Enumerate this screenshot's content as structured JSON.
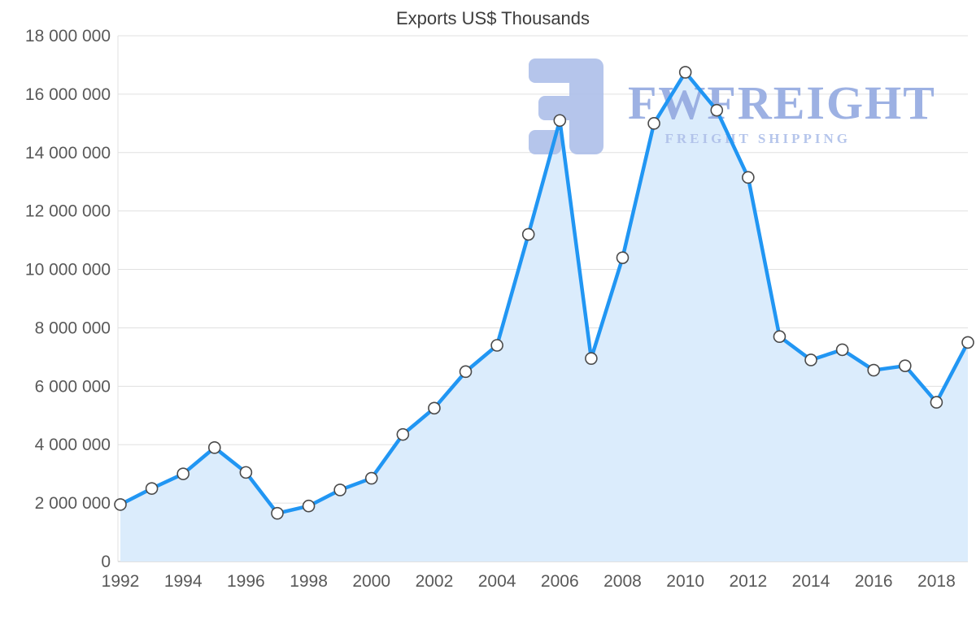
{
  "chart_data": {
    "type": "area",
    "title": "Exports US$ Thousands",
    "x": [
      1992,
      1993,
      1994,
      1995,
      1996,
      1997,
      1998,
      1999,
      2000,
      2001,
      2002,
      2003,
      2004,
      2005,
      2006,
      2007,
      2008,
      2009,
      2010,
      2011,
      2012,
      2013,
      2014,
      2015,
      2016,
      2017,
      2018,
      2019
    ],
    "values": [
      1950000,
      2500000,
      3000000,
      3900000,
      3050000,
      1650000,
      1900000,
      2450000,
      2850000,
      4350000,
      5250000,
      6500000,
      7400000,
      11200000,
      15100000,
      6950000,
      10400000,
      15000000,
      16750000,
      15450000,
      13150000,
      7700000,
      6900000,
      7250000,
      6550000,
      6700000,
      5450000,
      7500000
    ],
    "xlabel": "",
    "ylabel": "",
    "ylim": [
      0,
      18000000
    ],
    "ytick_step": 2000000,
    "ytick_labels": [
      "0",
      "2 000 000",
      "4 000 000",
      "6 000 000",
      "8 000 000",
      "10 000 000",
      "12 000 000",
      "14 000 000",
      "16 000 000",
      "18 000 000"
    ],
    "xtick_labels": [
      "1992",
      "1994",
      "1996",
      "1998",
      "2000",
      "2002",
      "2004",
      "2006",
      "2008",
      "2010",
      "2012",
      "2014",
      "2016",
      "2018"
    ],
    "grid": true,
    "legend": "none",
    "line_color": "#2196f3",
    "fill_color": "#dbecfc",
    "marker_fill": "#ffffff",
    "marker_stroke": "#4a4a4a",
    "grid_color": "#e0e0e0",
    "axis_line_color": "#c6c6c6"
  },
  "watermark": {
    "brand": "FWFREIGHT",
    "tagline": "FREIGHT SHIPPING",
    "brand_color": "#93a9e0",
    "tagline_color": "#aebfe9",
    "logo_color": "#aebfe9"
  }
}
